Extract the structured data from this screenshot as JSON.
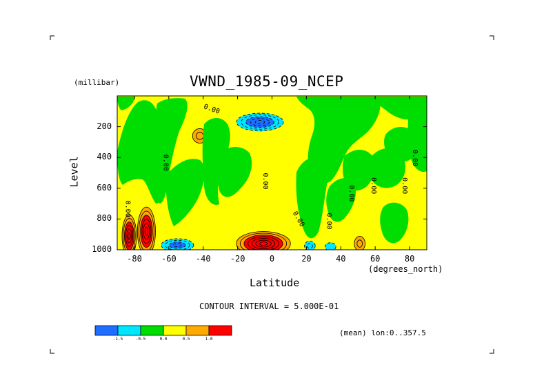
{
  "chart_data": {
    "type": "heatmap",
    "title": "VWND_1985-09_NCEP",
    "xlabel": "Latitude",
    "x_units": "(degrees_north)",
    "ylabel": "Level",
    "y_units": "(millibar)",
    "xlim": [
      -90,
      90
    ],
    "ylim": [
      1000,
      0
    ],
    "x_ticks": [
      -80,
      -60,
      -40,
      -20,
      0,
      20,
      40,
      60,
      80
    ],
    "y_ticks": [
      200,
      400,
      600,
      800,
      1000
    ],
    "contour_interval_text": "CONTOUR INTERVAL = 5.000E-01",
    "mean_text": "(mean) lon:0..357.5",
    "contour_labels": [
      "0.00",
      "0.00",
      "0.00",
      "0.00",
      "0.00",
      "0.00",
      "0.00",
      "0.00",
      "0.00",
      "0.00"
    ],
    "levels": [
      -1.5,
      -0.5,
      0.0,
      0.5,
      1.0
    ],
    "legend": {
      "colors": [
        "#1e6eff",
        "#00e6ff",
        "#00dd00",
        "#ffff00",
        "#ffaa00",
        "#ff0000"
      ],
      "labels": [
        "-1.5",
        "-0.5",
        "0.0",
        "0.5",
        "1.0"
      ]
    },
    "features": [
      {
        "kind": "max",
        "lat": -83,
        "lev": 910,
        "amp": 3.0,
        "rx": 4,
        "ry": 130
      },
      {
        "kind": "max",
        "lat": -73,
        "lev": 880,
        "amp": 3.0,
        "rx": 5,
        "ry": 150
      },
      {
        "kind": "max",
        "lat": -5,
        "lev": 960,
        "amp": 3.5,
        "rx": 15,
        "ry": 75
      },
      {
        "kind": "min",
        "lat": -55,
        "lev": 970,
        "amp": -2.0,
        "rx": 9,
        "ry": 40
      },
      {
        "kind": "min",
        "lat": -7,
        "lev": 170,
        "amp": -2.6,
        "rx": 13,
        "ry": 55
      },
      {
        "kind": "max",
        "lat": -42,
        "lev": 260,
        "amp": 0.8,
        "rx": 4,
        "ry": 45
      },
      {
        "kind": "max",
        "lat": 51,
        "lev": 960,
        "amp": 0.8,
        "rx": 3,
        "ry": 45
      },
      {
        "kind": "min",
        "lat": 22,
        "lev": 975,
        "amp": -0.8,
        "rx": 3,
        "ry": 30
      },
      {
        "kind": "min",
        "lat": 34,
        "lev": 980,
        "amp": -0.7,
        "rx": 3,
        "ry": 25
      }
    ]
  }
}
